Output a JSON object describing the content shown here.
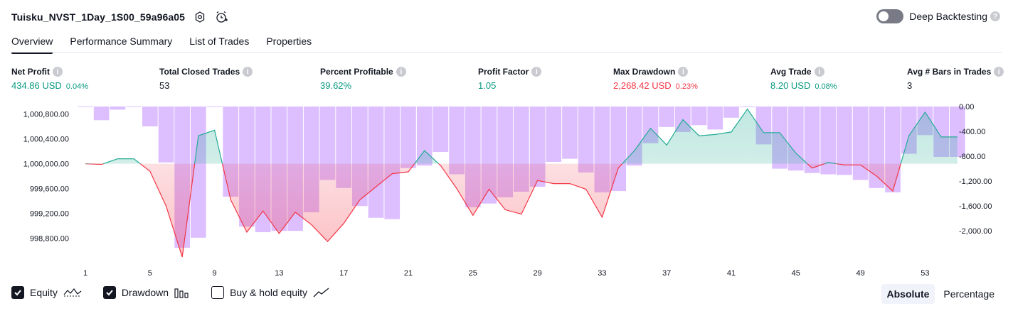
{
  "header": {
    "strategy_name": "Tuisku_NVST_1Day_1S00_59a96a05",
    "icons": [
      "settings-gear-icon",
      "alarm-add-icon"
    ]
  },
  "deep_backtesting": {
    "label": "Deep Backtesting",
    "enabled": false
  },
  "tabs": [
    {
      "label": "Overview",
      "active": true
    },
    {
      "label": "Performance Summary",
      "active": false
    },
    {
      "label": "List of Trades",
      "active": false
    },
    {
      "label": "Properties",
      "active": false
    }
  ],
  "metrics": {
    "net_profit": {
      "label": "Net Profit",
      "value": "434.86 USD",
      "sub": "0.04%"
    },
    "total_closed_trades": {
      "label": "Total Closed Trades",
      "value": "53"
    },
    "percent_profitable": {
      "label": "Percent Profitable",
      "value": "39.62%"
    },
    "profit_factor": {
      "label": "Profit Factor",
      "value": "1.05"
    },
    "max_drawdown": {
      "label": "Max Drawdown",
      "value": "2,268.42 USD",
      "sub": "0.23%"
    },
    "avg_trade": {
      "label": "Avg Trade",
      "value": "8.20 USD",
      "sub": "0.08%"
    },
    "avg_bars": {
      "label": "Avg # Bars in Trades",
      "value": "3"
    }
  },
  "chart_data": {
    "type": "line",
    "left_axis": {
      "ticks": [
        998800,
        999200,
        999600,
        1000000,
        1000400,
        1000800
      ],
      "tick_labels": [
        "998,800.00",
        "999,200.00",
        "999,600.00",
        "1,000,000.00",
        "1,000,400.00",
        "1,000,800.00"
      ],
      "range": [
        998500,
        1000920
      ]
    },
    "right_axis": {
      "ticks": [
        0,
        -400,
        -800,
        -1200,
        -1600,
        -2000
      ],
      "tick_labels": [
        "0.00",
        "-400.00",
        "-800.00",
        "-1,200.00",
        "-1,600.00",
        "-2,000.00"
      ],
      "range": [
        -2420,
        0
      ]
    },
    "x_ticks": [
      1,
      5,
      9,
      13,
      17,
      21,
      25,
      29,
      33,
      37,
      41,
      45,
      49,
      53
    ],
    "baseline_equity": 1000000,
    "equity": [
      1000000,
      999990,
      1000080,
      1000080,
      999880,
      999320,
      998500,
      1000450,
      1000540,
      999420,
      998900,
      999240,
      998880,
      999220,
      999020,
      998750,
      999040,
      999420,
      999630,
      999840,
      999870,
      1000210,
      999970,
      999600,
      999170,
      999590,
      999260,
      999190,
      999730,
      999680,
      999680,
      999590,
      999140,
      999930,
      1000210,
      1000570,
      1000300,
      1000710,
      1000450,
      1000470,
      1000510,
      1000880,
      1000500,
      1000500,
      1000170,
      999930,
      1000020,
      999980,
      999980,
      999800,
      999560,
      1000450,
      1000830,
      1000430,
      1000430
    ],
    "drawdown": [
      0,
      -220,
      -50,
      0,
      -320,
      -900,
      -2270,
      -2110,
      0,
      -1450,
      -1930,
      -2020,
      -2000,
      -2000,
      -1700,
      -1180,
      -1310,
      -1600,
      -1790,
      -1810,
      -990,
      -950,
      -730,
      -1090,
      -1620,
      -1560,
      -1460,
      -1370,
      -1290,
      -890,
      -840,
      -1060,
      -1380,
      -1360,
      -950,
      -590,
      -330,
      -410,
      -300,
      -370,
      -180,
      0,
      -610,
      -1000,
      -1030,
      -1070,
      -1090,
      -1100,
      -1180,
      -1310,
      -1380,
      -760,
      -460,
      -810,
      -810
    ],
    "series": [
      {
        "name": "Equity"
      },
      {
        "name": "Drawdown"
      }
    ]
  },
  "legend": {
    "items": [
      {
        "label": "Equity",
        "checked": true,
        "icon": "equity-line-icon"
      },
      {
        "label": "Drawdown",
        "checked": true,
        "icon": "drawdown-bars-icon"
      },
      {
        "label": "Buy & hold equity",
        "checked": false,
        "icon": "trend-line-icon"
      }
    ]
  },
  "view_mode": {
    "absolute": "Absolute",
    "percentage": "Percentage",
    "selected": "absolute"
  },
  "colors": {
    "equity_up": "#22ab94",
    "equity_down": "#f23645",
    "drawdown_bar": "#d9b8ff",
    "positive": "#089981",
    "negative": "#f23645"
  }
}
